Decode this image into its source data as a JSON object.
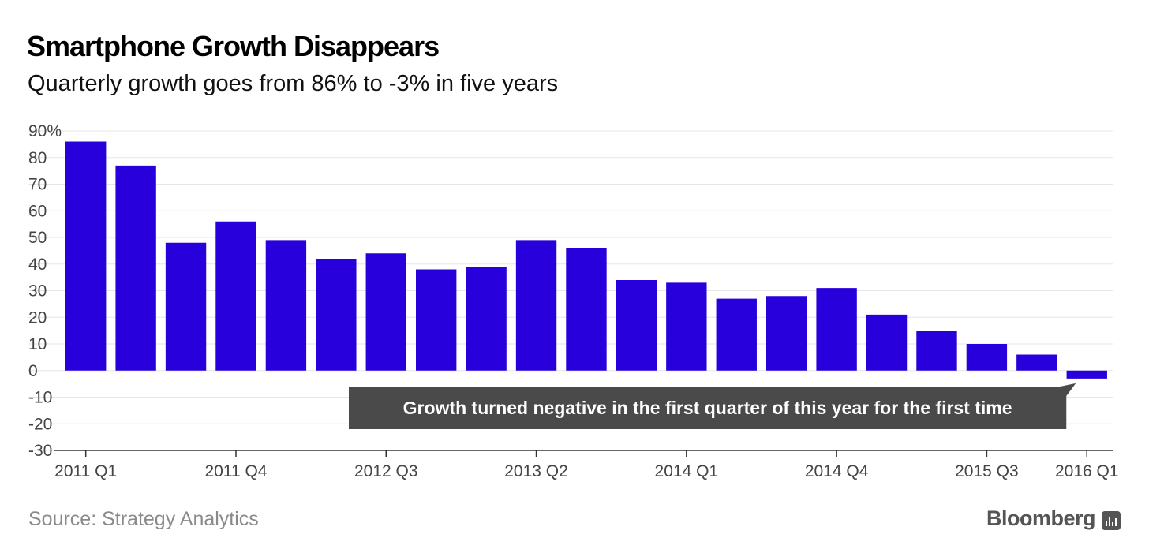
{
  "chart_data": {
    "type": "bar",
    "title": "Smartphone Growth Disappears",
    "subtitle": "Quarterly growth goes from 86% to -3% in five years",
    "categories": [
      "2011 Q1",
      "2011 Q2",
      "2011 Q3",
      "2011 Q4",
      "2012 Q1",
      "2012 Q2",
      "2012 Q3",
      "2012 Q4",
      "2013 Q1",
      "2013 Q2",
      "2013 Q3",
      "2013 Q4",
      "2014 Q1",
      "2014 Q2",
      "2014 Q3",
      "2014 Q4",
      "2015 Q1",
      "2015 Q2",
      "2015 Q3",
      "2015 Q4",
      "2016 Q1"
    ],
    "x_tick_labels": [
      "2011 Q1",
      "2011 Q4",
      "2012 Q3",
      "2013 Q2",
      "2014 Q1",
      "2014 Q4",
      "2015 Q3",
      "2016 Q1"
    ],
    "values": [
      86,
      77,
      48,
      56,
      49,
      42,
      44,
      38,
      39,
      49,
      46,
      34,
      33,
      27,
      28,
      31,
      21,
      15,
      10,
      6,
      -3
    ],
    "ylim": [
      -30,
      90
    ],
    "y_ticks": [
      90,
      80,
      70,
      60,
      50,
      40,
      30,
      20,
      10,
      0,
      -10,
      -20,
      -30
    ],
    "y_tick_labels": [
      "90%",
      "80",
      "70",
      "60",
      "50",
      "40",
      "30",
      "20",
      "10",
      "0",
      "-10",
      "-20",
      "-30"
    ],
    "grid": true,
    "bar_color": "#2800DC",
    "annotation": {
      "text": "Growth turned negative in the first quarter of this year for the first time",
      "category": "2016 Q1"
    },
    "source": "Source: Strategy Analytics",
    "brand": "Bloomberg"
  }
}
